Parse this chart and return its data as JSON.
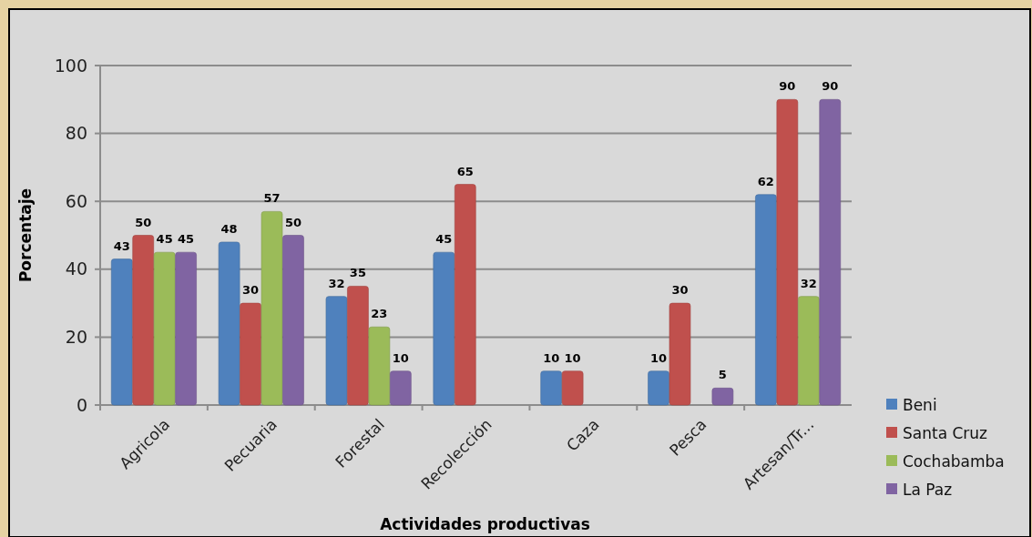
{
  "chart_data": {
    "type": "bar",
    "xlabel": "Actividades productivas",
    "ylabel": "Porcentaje",
    "categories": [
      "Agricola",
      "Pecuaria",
      "Forestal",
      "Recolección",
      "Caza",
      "Pesca",
      "Artesan/Tr..."
    ],
    "series": [
      {
        "name": "Beni",
        "color": "#4f81bd",
        "values": [
          43,
          48,
          32,
          45,
          10,
          10,
          62
        ]
      },
      {
        "name": "Santa Cruz",
        "color": "#c0504d",
        "values": [
          50,
          30,
          35,
          65,
          10,
          30,
          90
        ]
      },
      {
        "name": "Cochabamba",
        "color": "#9bbb59",
        "values": [
          45,
          57,
          23,
          null,
          null,
          null,
          32
        ]
      },
      {
        "name": "La Paz",
        "color": "#8064a2",
        "values": [
          45,
          50,
          10,
          null,
          null,
          5,
          90
        ]
      }
    ],
    "ylim": [
      0,
      100
    ],
    "yticks": [
      0,
      20,
      40,
      60,
      80,
      100
    ],
    "grid": "y",
    "legend": "bottom right",
    "data_labels": true
  }
}
